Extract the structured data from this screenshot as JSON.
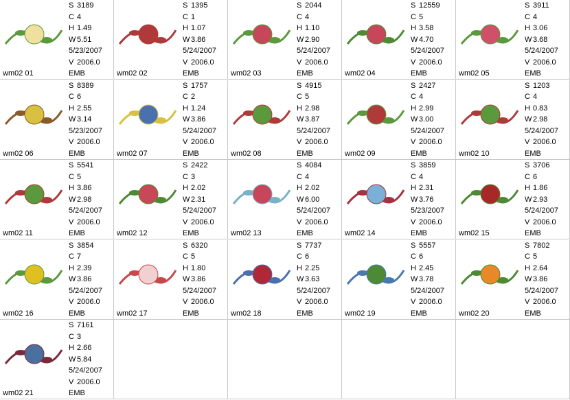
{
  "items": [
    {
      "name": "wm02 01",
      "lines": [
        [
          "S",
          "3189"
        ],
        [
          "C",
          "4"
        ],
        [
          "H",
          "1.49"
        ],
        [
          "W",
          "5.51"
        ],
        [
          "5/23/2007"
        ],
        [
          "V",
          "2006.0"
        ],
        [
          "EMB"
        ]
      ]
    },
    {
      "name": "wm02 02",
      "lines": [
        [
          "S",
          "1395"
        ],
        [
          "C",
          "1"
        ],
        [
          "H",
          "1.07"
        ],
        [
          "W",
          "3.86"
        ],
        [
          "5/24/2007"
        ],
        [
          "V",
          "2006.0"
        ],
        [
          "EMB"
        ]
      ]
    },
    {
      "name": "wm02 03",
      "lines": [
        [
          "S",
          "2044"
        ],
        [
          "C",
          "4"
        ],
        [
          "H",
          "1.10"
        ],
        [
          "W",
          "2.90"
        ],
        [
          "5/24/2007"
        ],
        [
          "V",
          "2006.0"
        ],
        [
          "EMB"
        ]
      ]
    },
    {
      "name": "wm02 04",
      "lines": [
        [
          "S",
          "12559"
        ],
        [
          "C",
          "5"
        ],
        [
          "H",
          "3.58"
        ],
        [
          "W",
          "4.70"
        ],
        [
          "5/24/2007"
        ],
        [
          "V",
          "2006.0"
        ],
        [
          "EMB"
        ]
      ]
    },
    {
      "name": "wm02 05",
      "lines": [
        [
          "S",
          "3911"
        ],
        [
          "C",
          "4"
        ],
        [
          "H",
          "3.06"
        ],
        [
          "W",
          "3.68"
        ],
        [
          "5/24/2007"
        ],
        [
          "V",
          "2006.0"
        ],
        [
          "EMB"
        ]
      ]
    },
    {
      "name": "wm02 06",
      "lines": [
        [
          "S",
          "8389"
        ],
        [
          "C",
          "6"
        ],
        [
          "H",
          "2.55"
        ],
        [
          "W",
          "3.14"
        ],
        [
          "5/23/2007"
        ],
        [
          "V",
          "2006.0"
        ],
        [
          "EMB"
        ]
      ]
    },
    {
      "name": "wm02 07",
      "lines": [
        [
          "S",
          "1757"
        ],
        [
          "C",
          "2"
        ],
        [
          "H",
          "1.24"
        ],
        [
          "W",
          "3.86"
        ],
        [
          "5/24/2007"
        ],
        [
          "V",
          "2006.0"
        ],
        [
          "EMB"
        ]
      ]
    },
    {
      "name": "wm02 08",
      "lines": [
        [
          "S",
          "4915"
        ],
        [
          "C",
          "5"
        ],
        [
          "H",
          "2.98"
        ],
        [
          "W",
          "3.87"
        ],
        [
          "5/24/2007"
        ],
        [
          "V",
          "2006.0"
        ],
        [
          "EMB"
        ]
      ]
    },
    {
      "name": "wm02 09",
      "lines": [
        [
          "S",
          "2427"
        ],
        [
          "C",
          "4"
        ],
        [
          "H",
          "2.99"
        ],
        [
          "W",
          "3.00"
        ],
        [
          "5/24/2007"
        ],
        [
          "V",
          "2006.0"
        ],
        [
          "EMB"
        ]
      ]
    },
    {
      "name": "wm02 10",
      "lines": [
        [
          "S",
          "1203"
        ],
        [
          "C",
          "4"
        ],
        [
          "H",
          "0.83"
        ],
        [
          "W",
          "2.98"
        ],
        [
          "5/24/2007"
        ],
        [
          "V",
          "2006.0"
        ],
        [
          "EMB"
        ]
      ]
    },
    {
      "name": "wm02 11",
      "lines": [
        [
          "S",
          "5541"
        ],
        [
          "C",
          "5"
        ],
        [
          "H",
          "3.86"
        ],
        [
          "W",
          "2.98"
        ],
        [
          "5/24/2007"
        ],
        [
          "V",
          "2006.0"
        ],
        [
          "EMB"
        ]
      ]
    },
    {
      "name": "wm02 12",
      "lines": [
        [
          "S",
          "2422"
        ],
        [
          "C",
          "3"
        ],
        [
          "H",
          "2.02"
        ],
        [
          "W",
          "2.31"
        ],
        [
          "5/24/2007"
        ],
        [
          "V",
          "2006.0"
        ],
        [
          "EMB"
        ]
      ]
    },
    {
      "name": "wm02 13",
      "lines": [
        [
          "S",
          "4084"
        ],
        [
          "C",
          "4"
        ],
        [
          "H",
          "2.02"
        ],
        [
          "W",
          "6.00"
        ],
        [
          "5/24/2007"
        ],
        [
          "V",
          "2006.0"
        ],
        [
          "EMB"
        ]
      ]
    },
    {
      "name": "wm02 14",
      "lines": [
        [
          "S",
          "3859"
        ],
        [
          "C",
          "4"
        ],
        [
          "H",
          "2.31"
        ],
        [
          "W",
          "3.76"
        ],
        [
          "5/23/2007"
        ],
        [
          "V",
          "2006.0"
        ],
        [
          "EMB"
        ]
      ]
    },
    {
      "name": "wm02 15",
      "lines": [
        [
          "S",
          "3706"
        ],
        [
          "C",
          "6"
        ],
        [
          "H",
          "1.86"
        ],
        [
          "W",
          "2.93"
        ],
        [
          "5/24/2007"
        ],
        [
          "V",
          "2006.0"
        ],
        [
          "EMB"
        ]
      ]
    },
    {
      "name": "wm02 16",
      "lines": [
        [
          "S",
          "3854"
        ],
        [
          "C",
          "7"
        ],
        [
          "H",
          "2.39"
        ],
        [
          "W",
          "3.86"
        ],
        [
          "5/24/2007"
        ],
        [
          "V",
          "2006.0"
        ],
        [
          "EMB"
        ]
      ]
    },
    {
      "name": "wm02 17",
      "lines": [
        [
          "S",
          "6320"
        ],
        [
          "C",
          "5"
        ],
        [
          "H",
          "1.80"
        ],
        [
          "W",
          "3.86"
        ],
        [
          "5/24/2007"
        ],
        [
          "V",
          "2006.0"
        ],
        [
          "EMB"
        ]
      ]
    },
    {
      "name": "wm02 18",
      "lines": [
        [
          "S",
          "7737"
        ],
        [
          "C",
          "6"
        ],
        [
          "H",
          "2.25"
        ],
        [
          "W",
          "3.63"
        ],
        [
          "5/24/2007"
        ],
        [
          "V",
          "2006.0"
        ],
        [
          "EMB"
        ]
      ]
    },
    {
      "name": "wm02 19",
      "lines": [
        [
          "S",
          "5557"
        ],
        [
          "C",
          "6"
        ],
        [
          "H",
          "2.45"
        ],
        [
          "W",
          "3.78"
        ],
        [
          "5/24/2007"
        ],
        [
          "V",
          "2006.0"
        ],
        [
          "EMB"
        ]
      ]
    },
    {
      "name": "wm02 20",
      "lines": [
        [
          "S",
          "7802"
        ],
        [
          "C",
          "5"
        ],
        [
          "H",
          "2.64"
        ],
        [
          "W",
          "3.86"
        ],
        [
          "5/24/2007"
        ],
        [
          "V",
          "2006.0"
        ],
        [
          "EMB"
        ]
      ]
    },
    {
      "name": "wm02 21",
      "lines": [
        [
          "S",
          "7161"
        ],
        [
          "C",
          "3"
        ],
        [
          "H",
          "2.66"
        ],
        [
          "W",
          "5.84"
        ],
        [
          "5/24/2007"
        ],
        [
          "V",
          "2006.0"
        ],
        [
          "EMB"
        ]
      ]
    }
  ]
}
